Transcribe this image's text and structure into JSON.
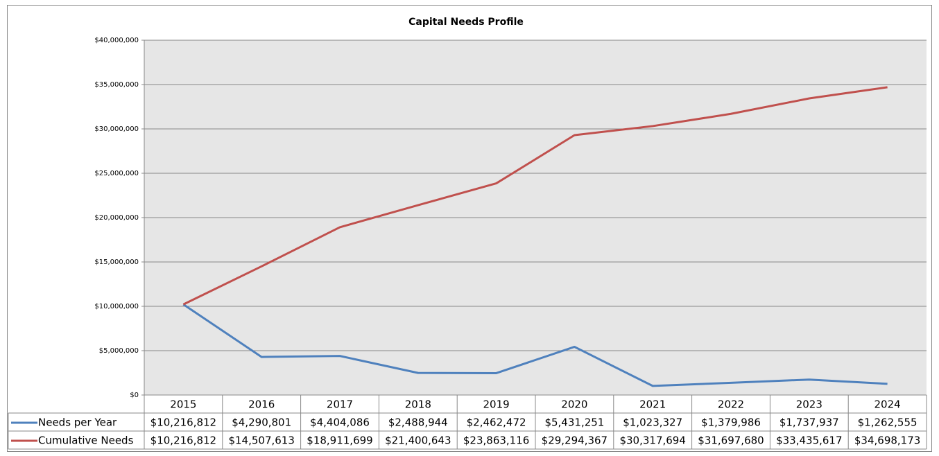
{
  "chart_data": {
    "type": "line",
    "title": "Capital Needs Profile",
    "categories": [
      "2015",
      "2016",
      "2017",
      "2018",
      "2019",
      "2020",
      "2021",
      "2022",
      "2023",
      "2024"
    ],
    "series": [
      {
        "name": "Needs per Year",
        "color": "#4f81bd",
        "values": [
          10216812,
          4290801,
          4404086,
          2488944,
          2462472,
          5431251,
          1023327,
          1379986,
          1737937,
          1262555
        ],
        "value_labels": [
          "$10,216,812",
          "$4,290,801",
          "$4,404,086",
          "$2,488,944",
          "$2,462,472",
          "$5,431,251",
          "$1,023,327",
          "$1,379,986",
          "$1,737,937",
          "$1,262,555"
        ]
      },
      {
        "name": "Cumulative Needs",
        "color": "#c0504d",
        "values": [
          10216812,
          14507613,
          18911699,
          21400643,
          23863116,
          29294367,
          30317694,
          31697680,
          33435617,
          34698173
        ],
        "value_labels": [
          "$10,216,812",
          "$14,507,613",
          "$18,911,699",
          "$21,400,643",
          "$23,863,116",
          "$29,294,367",
          "$30,317,694",
          "$31,697,680",
          "$33,435,617",
          "$34,698,173"
        ]
      }
    ],
    "ylim": [
      0,
      40000000
    ],
    "yticks": [
      {
        "value": 0,
        "label": "$0"
      },
      {
        "value": 5000000,
        "label": "$5,000,000"
      },
      {
        "value": 10000000,
        "label": "$10,000,000"
      },
      {
        "value": 15000000,
        "label": "$15,000,000"
      },
      {
        "value": 20000000,
        "label": "$20,000,000"
      },
      {
        "value": 25000000,
        "label": "$25,000,000"
      },
      {
        "value": 30000000,
        "label": "$30,000,000"
      },
      {
        "value": 35000000,
        "label": "$35,000,000"
      },
      {
        "value": 40000000,
        "label": "$40,000,000"
      }
    ],
    "grid": true
  }
}
